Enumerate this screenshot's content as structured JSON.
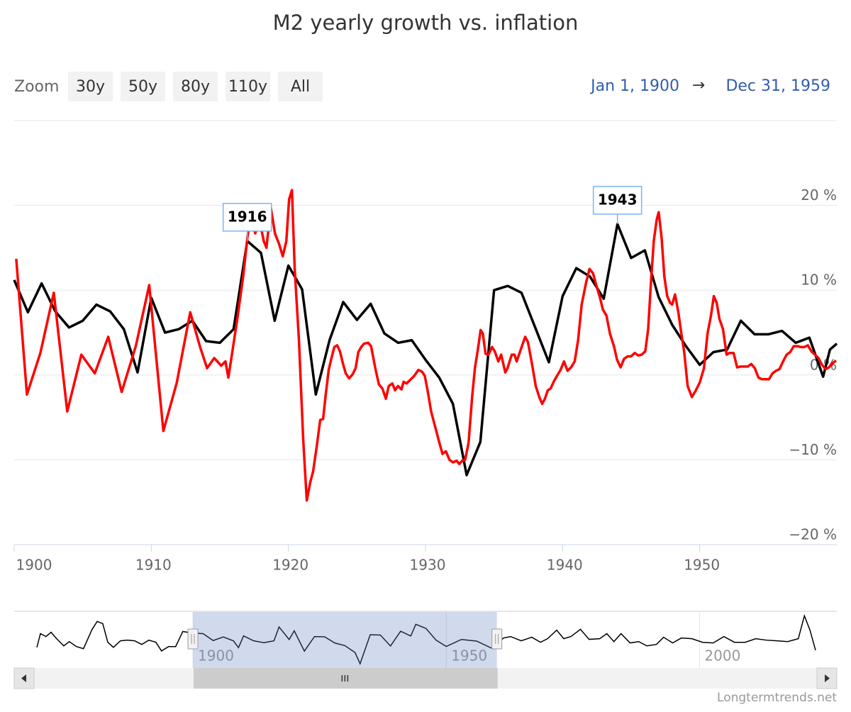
{
  "chart_data": {
    "type": "line",
    "title": "M2 yearly growth vs. inflation",
    "xlim": [
      1900,
      1960
    ],
    "xticks": [
      1900,
      1910,
      1920,
      1930,
      1940,
      1950
    ],
    "ylim": [
      -20,
      30
    ],
    "yticks": [
      {
        "value": -20,
        "label": "−20 %"
      },
      {
        "value": -10,
        "label": "−10 %"
      },
      {
        "value": 0,
        "label": "0 %"
      },
      {
        "value": 10,
        "label": "10 %"
      },
      {
        "value": 20,
        "label": "20 %"
      }
    ],
    "grid": true,
    "series": [
      {
        "color": "#000000",
        "x": [
          1900,
          1901,
          1902,
          1903,
          1904,
          1905,
          1906,
          1907,
          1908,
          1909,
          1910,
          1911,
          1912,
          1913,
          1914,
          1915,
          1916,
          1917,
          1918,
          1919,
          1920,
          1921,
          1922,
          1923,
          1924,
          1925,
          1926,
          1927,
          1928,
          1929,
          1930,
          1931,
          1932,
          1933,
          1934,
          1935,
          1936,
          1937,
          1938,
          1939,
          1940,
          1941,
          1942,
          1943,
          1944,
          1945,
          1946,
          1947,
          1948,
          1949,
          1950,
          1951,
          1952,
          1953,
          1954,
          1955,
          1956,
          1957,
          1958,
          1959,
          1959.5,
          1960
        ],
        "values": [
          11.2,
          7.4,
          10.8,
          7.5,
          5.6,
          6.4,
          8.3,
          7.5,
          5.4,
          0.3,
          9.1,
          5.0,
          5.4,
          6.4,
          4.0,
          3.8,
          5.4,
          15.8,
          14.4,
          6.4,
          12.9,
          10.1,
          -2.3,
          4.1,
          8.6,
          6.5,
          8.4,
          4.9,
          3.8,
          4.1,
          1.8,
          -0.3,
          -3.4,
          -11.8,
          -7.9,
          10.0,
          10.5,
          9.7,
          5.6,
          1.5,
          9.3,
          12.6,
          11.6,
          9.0,
          17.8,
          13.8,
          14.7,
          9.2,
          5.9,
          3.4,
          1.2,
          2.7,
          3.0,
          6.4,
          4.8,
          4.8,
          5.2,
          3.8,
          4.4,
          -0.2,
          3.0,
          3.7
        ]
      },
      {
        "color": "#ff0000",
        "x": [
          1900.15,
          1900.93,
          1901.91,
          1902.89,
          1903.87,
          1904.9,
          1905.88,
          1906.86,
          1907.84,
          1908.87,
          1909.85,
          1910.88,
          1911.86,
          1912.84,
          1913.56,
          1914.07,
          1914.59,
          1915.1,
          1915.41,
          1915.62,
          1915.88,
          1916.29,
          1916.7,
          1917.01,
          1917.27,
          1917.58,
          1917.89,
          1918.2,
          1918.4,
          1918.71,
          1919.02,
          1919.33,
          1919.59,
          1919.85,
          1920.05,
          1920.26,
          1920.46,
          1920.77,
          1921.08,
          1921.34,
          1921.6,
          1921.8,
          1922.06,
          1922.32,
          1922.53,
          1922.73,
          1922.94,
          1923.14,
          1923.35,
          1923.56,
          1923.76,
          1923.97,
          1924.18,
          1924.43,
          1924.69,
          1924.9,
          1925.1,
          1925.31,
          1925.52,
          1925.82,
          1926.03,
          1926.34,
          1926.6,
          1926.86,
          1927.11,
          1927.32,
          1927.58,
          1927.78,
          1927.99,
          1928.25,
          1928.4,
          1928.61,
          1928.87,
          1929.18,
          1929.48,
          1929.74,
          1929.95,
          1930.15,
          1930.41,
          1930.72,
          1930.98,
          1931.24,
          1931.49,
          1931.75,
          1932.01,
          1932.27,
          1932.47,
          1932.68,
          1932.89,
          1933.14,
          1933.4,
          1933.61,
          1933.81,
          1934.02,
          1934.18,
          1934.38,
          1934.59,
          1934.85,
          1935.05,
          1935.31,
          1935.52,
          1935.82,
          1935.98,
          1936.29,
          1936.49,
          1936.65,
          1937.01,
          1937.27,
          1937.47,
          1937.78,
          1938.04,
          1938.3,
          1938.51,
          1938.71,
          1938.92,
          1939.12,
          1939.38,
          1939.59,
          1939.85,
          1940.1,
          1940.36,
          1940.62,
          1940.88,
          1941.13,
          1941.39,
          1941.7,
          1941.96,
          1942.22,
          1942.42,
          1942.73,
          1942.94,
          1943.2,
          1943.45,
          1943.76,
          1943.97,
          1944.23,
          1944.48,
          1944.74,
          1945.0,
          1945.26,
          1945.52,
          1945.77,
          1946.03,
          1946.24,
          1946.44,
          1946.65,
          1946.86,
          1947.01,
          1947.22,
          1947.42,
          1947.63,
          1947.84,
          1947.99,
          1948.2,
          1948.45,
          1948.66,
          1948.87,
          1949.12,
          1949.43,
          1949.69,
          1950.0,
          1950.31,
          1950.57,
          1950.82,
          1951.03,
          1951.24,
          1951.44,
          1951.7,
          1951.96,
          1952.16,
          1952.47,
          1952.73,
          1952.99,
          1953.51,
          1953.76,
          1954.02,
          1954.28,
          1954.54,
          1955.05,
          1955.31,
          1955.57,
          1955.82,
          1956.08,
          1956.34,
          1956.6,
          1956.86,
          1957.11,
          1957.37,
          1957.63,
          1957.89,
          1958.14,
          1958.4,
          1958.66,
          1958.92,
          1959.18,
          1959.43,
          1959.69,
          1959.95
        ],
        "values": [
          13.7,
          -2.3,
          2.6,
          9.7,
          -4.3,
          2.4,
          0.2,
          4.5,
          -2.0,
          3.4,
          10.6,
          -6.6,
          -0.9,
          7.4,
          3.3,
          0.8,
          2.0,
          1.1,
          1.6,
          -0.3,
          2.4,
          6.8,
          11.6,
          16.2,
          19.2,
          16.7,
          18.3,
          15.8,
          15.0,
          19.8,
          16.7,
          15.4,
          14.0,
          15.8,
          20.7,
          21.8,
          12.5,
          4.1,
          -7.6,
          -14.8,
          -12.6,
          -11.4,
          -8.5,
          -5.3,
          -5.2,
          -2.2,
          0.6,
          2.0,
          3.3,
          3.5,
          2.8,
          1.4,
          0.2,
          -0.4,
          0.1,
          0.8,
          2.7,
          3.3,
          3.7,
          3.8,
          3.4,
          0.8,
          -1.1,
          -1.6,
          -2.8,
          -1.3,
          -1.0,
          -1.8,
          -1.3,
          -1.7,
          -0.8,
          -1.0,
          -0.6,
          -0.1,
          0.6,
          0.4,
          -0.1,
          -1.8,
          -4.3,
          -6.2,
          -7.8,
          -9.3,
          -9.0,
          -10.0,
          -10.3,
          -10.1,
          -10.5,
          -10.1,
          -10.0,
          -8.0,
          -2.6,
          0.9,
          2.9,
          5.3,
          4.9,
          2.5,
          2.4,
          3.3,
          2.8,
          1.6,
          2.4,
          0.3,
          0.8,
          2.4,
          2.4,
          1.6,
          3.3,
          4.5,
          3.9,
          1.2,
          -1.3,
          -2.6,
          -3.4,
          -2.8,
          -1.8,
          -1.6,
          -0.7,
          -0.1,
          0.6,
          1.6,
          0.5,
          0.9,
          1.6,
          4.1,
          8.3,
          10.8,
          12.5,
          12.0,
          10.8,
          9.1,
          7.7,
          7.0,
          4.9,
          3.3,
          1.8,
          0.9,
          1.9,
          2.2,
          2.2,
          2.6,
          2.3,
          2.4,
          2.8,
          5.4,
          10.8,
          15.8,
          18.3,
          19.2,
          16.2,
          11.6,
          9.3,
          8.5,
          8.3,
          9.5,
          7.3,
          4.9,
          2.7,
          -1.3,
          -2.6,
          -1.9,
          -0.9,
          0.8,
          4.9,
          7.0,
          9.3,
          8.5,
          6.6,
          5.4,
          2.4,
          2.6,
          2.6,
          0.9,
          1.0,
          1.0,
          1.3,
          0.8,
          -0.3,
          -0.5,
          -0.5,
          0.2,
          0.5,
          0.7,
          1.6,
          2.4,
          2.7,
          3.4,
          3.4,
          3.3,
          3.3,
          3.5,
          2.8,
          2.4,
          2.0,
          1.2,
          0.7,
          0.9,
          1.4,
          1.7
        ]
      }
    ],
    "annotations": [
      {
        "text": "1916",
        "x": 1917
      },
      {
        "text": "1943",
        "x": 1944
      }
    ],
    "navigator": {
      "xlim": [
        1869.2,
        2022.9
      ],
      "ylim": [
        -15,
        27
      ],
      "xticks": [
        1900,
        1950,
        2000
      ],
      "color": "#000000",
      "x": [
        1869.2,
        1869.9,
        1871.0,
        1872.0,
        1873.1,
        1874.5,
        1875.6,
        1877.0,
        1878.4,
        1880.1,
        1881.1,
        1882.2,
        1883.2,
        1884.3,
        1885.7,
        1887.1,
        1888.5,
        1889.9,
        1891.3,
        1892.7,
        1893.8,
        1895.2,
        1896.6,
        1898.0,
        1900,
        1902,
        1904,
        1906,
        1908,
        1909,
        1910,
        1912,
        1914,
        1916,
        1917,
        1919,
        1920,
        1922,
        1924,
        1926,
        1928,
        1930,
        1932,
        1933,
        1935,
        1937,
        1939,
        1941,
        1943,
        1944,
        1946,
        1948,
        1950,
        1953,
        1956,
        1959,
        1961.3,
        1962.7,
        1964.8,
        1966.9,
        1968.6,
        1970.0,
        1971.8,
        1973.2,
        1974.6,
        1976.5,
        1978.2,
        1980.3,
        1981.7,
        1983.1,
        1984.5,
        1986.3,
        1988.0,
        1989.6,
        1991.5,
        1992.9,
        1994.7,
        1996.4,
        1998.5,
        2000.6,
        2002.7,
        2004.8,
        2006.9,
        2009.0,
        2011.1,
        2013.2,
        2015.3,
        2017.4,
        2019.5,
        2020.7,
        2021.8,
        2022.9
      ],
      "values": [
        0.5,
        10.8,
        8.6,
        11.8,
        7.0,
        1.6,
        4.8,
        1.1,
        -0.5,
        14.0,
        19.9,
        18.3,
        4.3,
        0.5,
        5.4,
        5.9,
        5.4,
        2.7,
        5.9,
        4.3,
        -2.2,
        1.1,
        1.1,
        12.4,
        11.2,
        10.8,
        5.6,
        8.3,
        5.4,
        0.3,
        9.1,
        5.4,
        4.0,
        5.4,
        15.8,
        6.4,
        12.9,
        -2.3,
        8.6,
        8.4,
        3.8,
        1.8,
        -3.4,
        -11.8,
        10.0,
        9.7,
        1.5,
        12.6,
        9.0,
        17.8,
        14.7,
        5.9,
        1.2,
        6.4,
        5.2,
        -0.2,
        7.5,
        8.6,
        5.4,
        8.1,
        4.3,
        7.0,
        13.4,
        7.0,
        8.6,
        14.0,
        6.5,
        7.0,
        10.8,
        4.8,
        10.8,
        3.8,
        4.8,
        1.6,
        2.7,
        8.1,
        3.8,
        7.5,
        7.0,
        4.3,
        3.8,
        8.6,
        4.3,
        4.3,
        7.0,
        5.9,
        5.4,
        4.8,
        7.0,
        24.2,
        13.4,
        -1.6
      ]
    }
  },
  "range_selector": {
    "label": "Zoom",
    "buttons": [
      "30y",
      "50y",
      "80y",
      "110y",
      "All"
    ],
    "from": "Jan 1, 1900",
    "separator": "→",
    "to": "Dec 31, 1959"
  },
  "credits": "Longtermtrends.net"
}
